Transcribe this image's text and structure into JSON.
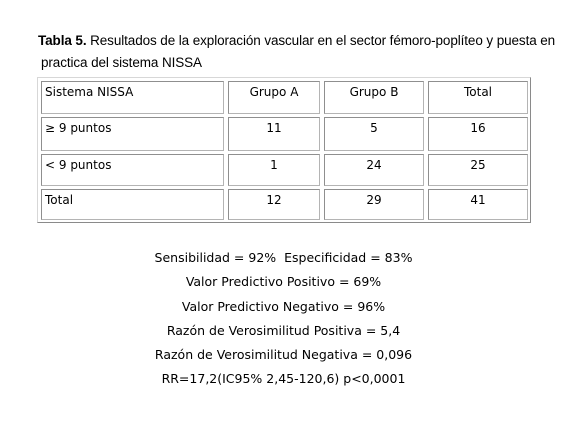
{
  "caption": {
    "label": "Tabla 5.",
    "text_line1": " Resultados de la exploración vascular en el sector fémoro-poplíteo y puesta en",
    "text_line2": "practica del sistema NISSA"
  },
  "table": {
    "headers": [
      "Sistema NISSA",
      "Grupo A",
      "Grupo B",
      "Total"
    ],
    "rows": [
      [
        "≥ 9 puntos",
        "11",
        "5",
        "16"
      ],
      [
        "< 9 puntos",
        "1",
        "24",
        "25"
      ],
      [
        "Total",
        "12",
        "29",
        "41"
      ]
    ]
  },
  "stats": [
    "Sensibilidad = 92%  Especificidad = 83%",
    "Valor Predictivo Positivo = 69%",
    "Valor Predictivo Negativo = 96%",
    "Razón de Verosimilitud Positiva = 5,4",
    "Razón de Verosimilitud Negativa = 0,096",
    "RR=17,2(IC95% 2,45-120,6) p<0,0001"
  ]
}
